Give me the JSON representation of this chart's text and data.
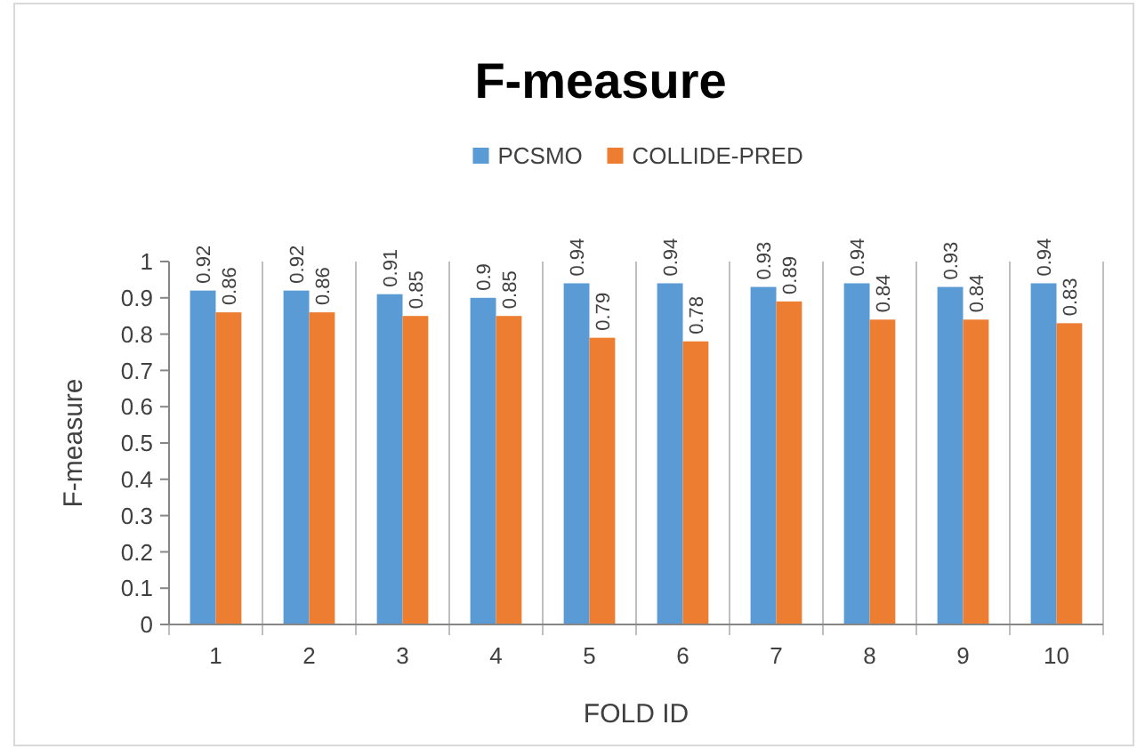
{
  "chart_data": {
    "type": "bar",
    "title": "F-measure",
    "xlabel": "FOLD ID",
    "ylabel": "F-measure",
    "categories": [
      "1",
      "2",
      "3",
      "4",
      "5",
      "6",
      "7",
      "8",
      "9",
      "10"
    ],
    "series": [
      {
        "name": "PCSMO",
        "color": "#5b9bd5",
        "values": [
          0.92,
          0.92,
          0.91,
          0.9,
          0.94,
          0.94,
          0.93,
          0.94,
          0.93,
          0.94
        ]
      },
      {
        "name": "COLLIDE-PRED",
        "color": "#ed7d31",
        "values": [
          0.86,
          0.86,
          0.85,
          0.85,
          0.79,
          0.78,
          0.89,
          0.84,
          0.84,
          0.83
        ]
      }
    ],
    "ylim": [
      0,
      1
    ],
    "yticks": [
      0,
      0.1,
      0.2,
      0.3,
      0.4,
      0.5,
      0.6,
      0.7,
      0.8,
      0.9,
      1
    ],
    "grid": "x",
    "legend": "top",
    "data_labels": true
  }
}
